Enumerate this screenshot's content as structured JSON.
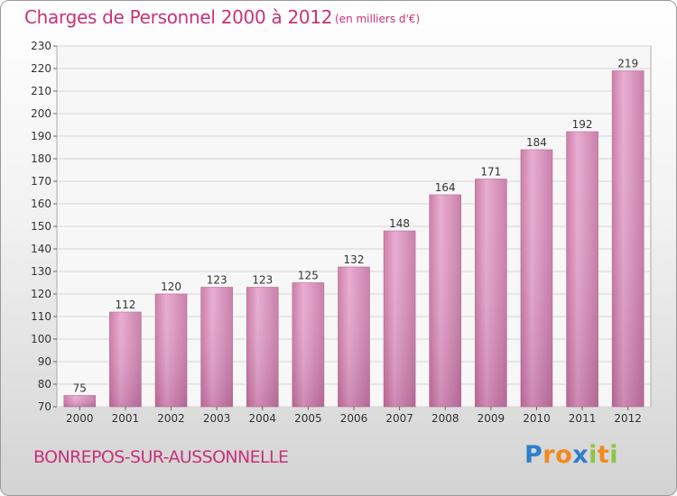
{
  "header": {
    "title": "Charges de Personnel 2000 à 2012",
    "subtitle": "(en milliers d'€)"
  },
  "footer": {
    "commune": "BONREPOS-SUR-AUSSONNELLE",
    "logo_letters": [
      "P",
      "r",
      "o",
      "x",
      "i",
      "t",
      "i"
    ],
    "logo_colors": [
      "#2e7fc8",
      "#f08a1c",
      "#f08a1c",
      "#2e7fc8",
      "#8cc63f",
      "#f08a1c",
      "#8cc63f"
    ]
  },
  "chart_data": {
    "type": "bar",
    "title": "Charges de Personnel 2000 à 2012",
    "subtitle": "(en milliers d'€)",
    "categories": [
      "2000",
      "2001",
      "2002",
      "2003",
      "2004",
      "2005",
      "2006",
      "2007",
      "2008",
      "2009",
      "2010",
      "2011",
      "2012"
    ],
    "values": [
      75,
      112,
      120,
      123,
      123,
      125,
      132,
      148,
      164,
      171,
      184,
      192,
      219
    ],
    "ylim": [
      70,
      230
    ],
    "ytick_step": 10,
    "grid": "horizontal",
    "bar_color": "#d888b8",
    "bar_color_light": "#e8a8d0",
    "bar_color_dark": "#b86a98",
    "text_color": "#c8327a"
  }
}
